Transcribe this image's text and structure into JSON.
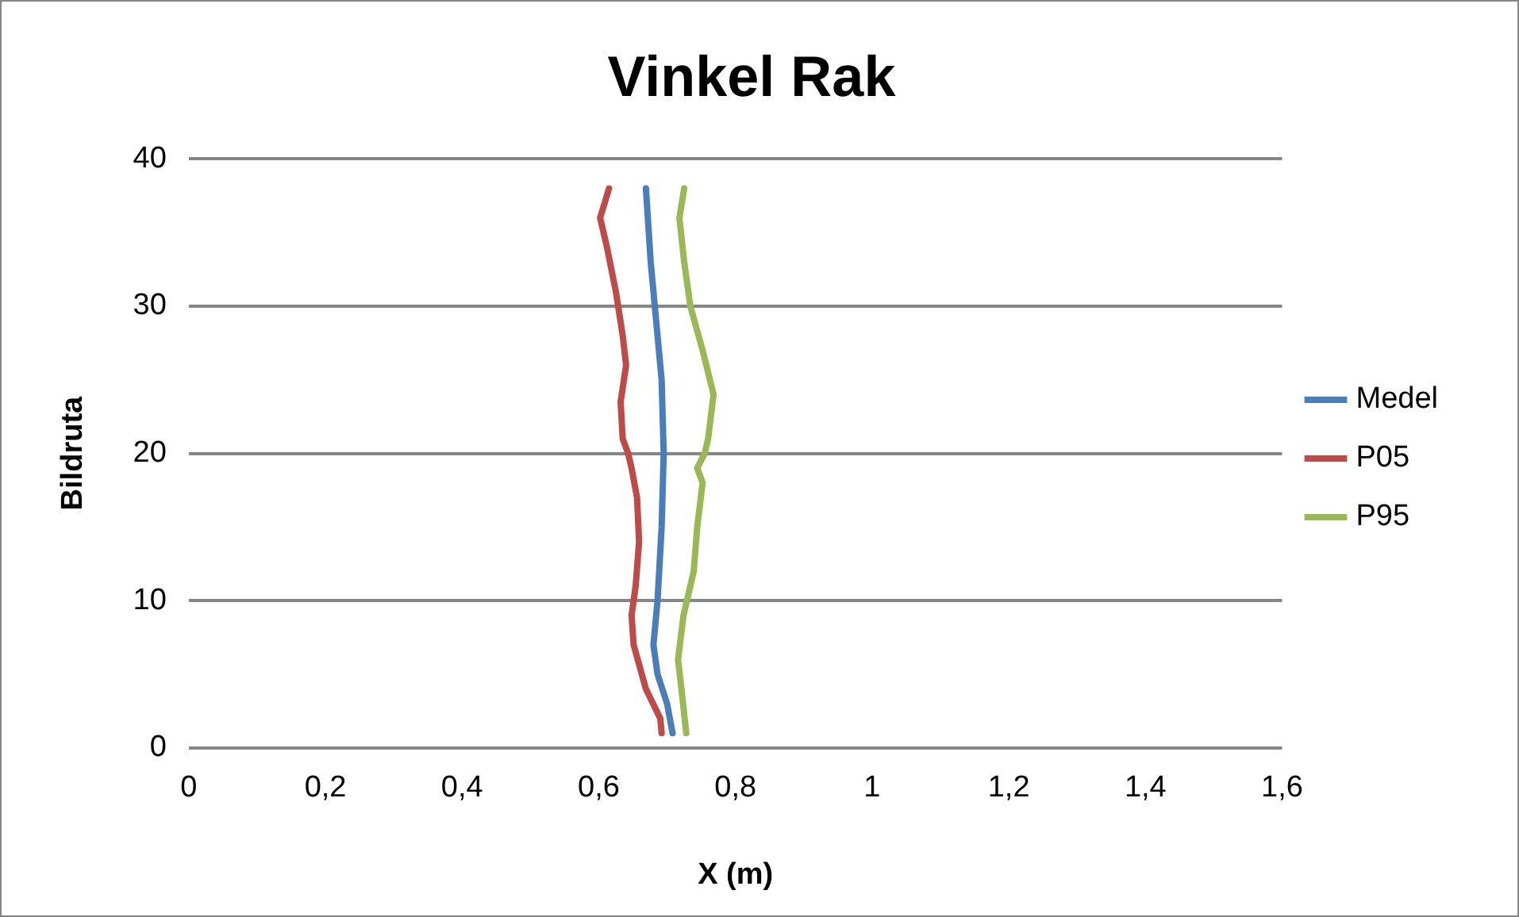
{
  "chart_data": {
    "type": "line",
    "title": "Vinkel Rak",
    "xlabel": "X (m)",
    "ylabel": "Bildruta",
    "xlim": [
      0,
      1.6
    ],
    "xticks": [
      {
        "value": 0,
        "label": "0"
      },
      {
        "value": 0.2,
        "label": "0,2"
      },
      {
        "value": 0.4,
        "label": "0,4"
      },
      {
        "value": 0.6,
        "label": "0,6"
      },
      {
        "value": 0.8,
        "label": "0,8"
      },
      {
        "value": 1,
        "label": "1"
      },
      {
        "value": 1.2,
        "label": "1,2"
      },
      {
        "value": 1.4,
        "label": "1,4"
      },
      {
        "value": 1.6,
        "label": "1,6"
      }
    ],
    "ylim": [
      0,
      40
    ],
    "yticks": [
      0,
      10,
      20,
      30,
      40
    ],
    "grid": "y",
    "legend": "right",
    "marker": "none",
    "line_style": "solid",
    "series": [
      {
        "name": "Medel",
        "color": "#4a7ebb",
        "x": [
          0.708,
          0.7,
          0.686,
          0.68,
          0.686,
          0.692,
          0.695,
          0.692,
          0.682,
          0.676,
          0.669
        ],
        "values": [
          1,
          3,
          5,
          7,
          10,
          15,
          20,
          25,
          30,
          33,
          38
        ]
      },
      {
        "name": "P05",
        "color": "#be4b48",
        "x": [
          0.692,
          0.69,
          0.669,
          0.651,
          0.648,
          0.654,
          0.659,
          0.656,
          0.648,
          0.643,
          0.635,
          0.632,
          0.64,
          0.635,
          0.625,
          0.612,
          0.602,
          0.615
        ],
        "values": [
          1,
          2,
          4,
          7,
          9,
          11,
          14,
          17,
          19,
          20,
          21,
          23.5,
          26,
          28,
          31,
          34,
          36,
          38
        ]
      },
      {
        "name": "P95",
        "color": "#98b954",
        "x": [
          0.728,
          0.721,
          0.716,
          0.724,
          0.739,
          0.744,
          0.752,
          0.744,
          0.755,
          0.76,
          0.768,
          0.752,
          0.734,
          0.725,
          0.718,
          0.725
        ],
        "values": [
          1,
          4,
          6,
          9,
          12,
          15,
          18,
          19,
          20,
          21,
          24,
          27,
          30,
          33,
          36,
          38
        ]
      }
    ]
  }
}
